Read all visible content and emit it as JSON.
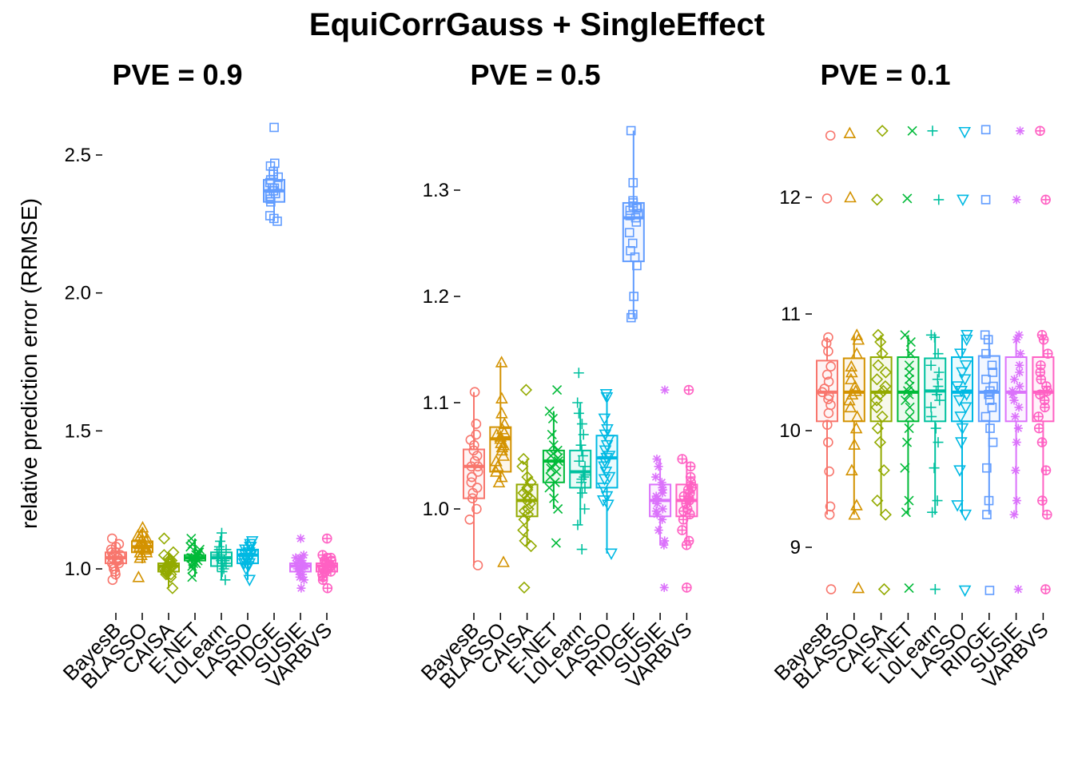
{
  "figure": {
    "title": "EquiCorrGauss + SingleEffect",
    "ylabel": "relative prediction error (RRMSE)"
  },
  "methods": [
    "BayesB",
    "BLASSO",
    "CAISA",
    "E-NET",
    "L0Learn",
    "LASSO",
    "RIDGE",
    "SUSIE",
    "VARBVS"
  ],
  "method_colors": [
    "#F8766D",
    "#D39200",
    "#93AA00",
    "#00BA38",
    "#00C19F",
    "#00B9E3",
    "#619CFF",
    "#DB72FB",
    "#FF61C3"
  ],
  "method_shapes": [
    "circle",
    "triangle",
    "diamond",
    "x",
    "plus",
    "triangle-down",
    "square",
    "asterisk",
    "circle-plus"
  ],
  "chart_data": [
    {
      "type": "box",
      "title": "PVE = 0.9",
      "ylim": [
        0.86,
        2.68
      ],
      "yticks": [
        1.0,
        1.5,
        2.0,
        2.5
      ],
      "ytick_labels": [
        "1.0",
        "1.5",
        "2.0",
        "2.5"
      ],
      "grid": false,
      "boxes": [
        {
          "method": "BayesB",
          "q1": 1.02,
          "median": 1.04,
          "q3": 1.06,
          "whisker_low": 0.96,
          "whisker_high": 1.11
        },
        {
          "method": "BLASSO",
          "q1": 1.06,
          "median": 1.08,
          "q3": 1.1,
          "whisker_low": 1.02,
          "whisker_high": 1.15
        },
        {
          "method": "CAISA",
          "q1": 0.99,
          "median": 1.01,
          "q3": 1.02,
          "whisker_low": 0.93,
          "whisker_high": 1.06
        },
        {
          "method": "E-NET",
          "q1": 1.03,
          "median": 1.04,
          "q3": 1.05,
          "whisker_low": 0.97,
          "whisker_high": 1.11
        },
        {
          "method": "L0Learn",
          "q1": 1.01,
          "median": 1.04,
          "q3": 1.06,
          "whisker_low": 0.96,
          "whisker_high": 1.13
        },
        {
          "method": "LASSO",
          "q1": 1.02,
          "median": 1.05,
          "q3": 1.07,
          "whisker_low": 0.96,
          "whisker_high": 1.11
        },
        {
          "method": "RIDGE",
          "q1": 2.33,
          "median": 2.37,
          "q3": 2.41,
          "whisker_low": 2.26,
          "whisker_high": 2.46
        },
        {
          "method": "SUSIE",
          "q1": 0.99,
          "median": 1.01,
          "q3": 1.02,
          "whisker_low": 0.96,
          "whisker_high": 1.05
        },
        {
          "method": "VARBVS",
          "q1": 0.99,
          "median": 1.01,
          "q3": 1.02,
          "whisker_low": 0.96,
          "whisker_high": 1.05
        }
      ],
      "points": [
        [
          1.04,
          1.06,
          0.99,
          1.09,
          0.96,
          1.02,
          1.11,
          1.05,
          1.0,
          1.03,
          1.07,
          1.01,
          1.04,
          1.08,
          1.02,
          1.05,
          1.03,
          1.06,
          0.98,
          1.04
        ],
        [
          1.08,
          1.1,
          1.06,
          1.15,
          0.97,
          1.12,
          1.07,
          1.09,
          1.05,
          1.11,
          1.08,
          1.13,
          1.06,
          1.1,
          1.04,
          1.09,
          1.07,
          1.12,
          1.08,
          1.06
        ],
        [
          1.01,
          0.99,
          0.93,
          1.11,
          1.03,
          1.0,
          1.02,
          0.98,
          1.04,
          1.01,
          0.97,
          1.06,
          1.0,
          1.02,
          0.99,
          1.03,
          1.01,
          1.0,
          0.98,
          1.05
        ],
        [
          1.04,
          1.06,
          1.02,
          1.11,
          0.97,
          1.05,
          1.03,
          1.08,
          1.04,
          1.0,
          1.06,
          1.09,
          1.03,
          1.05,
          1.04,
          1.02,
          1.07,
          1.04,
          1.01,
          1.05
        ],
        [
          1.03,
          1.13,
          0.96,
          1.07,
          1.04,
          1.01,
          1.1,
          1.05,
          0.99,
          1.06,
          1.02,
          1.08,
          1.04,
          1.03,
          1.0,
          1.05,
          1.07,
          1.02,
          1.04,
          1.06
        ],
        [
          1.05,
          1.07,
          0.96,
          1.1,
          1.02,
          1.04,
          1.08,
          1.06,
          1.0,
          1.09,
          1.03,
          1.05,
          1.07,
          1.01,
          1.04,
          1.06,
          1.08,
          1.03,
          1.05,
          1.02
        ],
        [
          2.6,
          2.47,
          2.46,
          2.43,
          2.42,
          2.41,
          2.4,
          2.39,
          2.38,
          2.37,
          2.36,
          2.35,
          2.34,
          2.33,
          2.28,
          2.27,
          2.26,
          2.36,
          2.38,
          2.44
        ],
        [
          1.11,
          0.93,
          1.05,
          1.04,
          1.03,
          1.02,
          1.01,
          1.0,
          0.99,
          0.98,
          1.01,
          1.0,
          0.97,
          1.03,
          1.02,
          0.99,
          1.0,
          1.04,
          0.96,
          1.01
        ],
        [
          1.11,
          0.93,
          1.05,
          1.04,
          1.03,
          1.02,
          1.01,
          1.0,
          0.99,
          0.98,
          1.01,
          1.0,
          0.97,
          1.03,
          1.02,
          0.99,
          1.0,
          1.04,
          0.96,
          1.01
        ]
      ]
    },
    {
      "type": "box",
      "title": "PVE = 0.5",
      "ylim": [
        0.913,
        1.36
      ],
      "yticks": [
        1.0,
        1.1,
        1.2,
        1.3
      ],
      "ytick_labels": [
        "1.0",
        "1.1",
        "1.2",
        "1.3"
      ],
      "grid": false,
      "boxes": [
        {
          "method": "BayesB",
          "q1": 1.01,
          "median": 1.04,
          "q3": 1.056,
          "whisker_low": 0.947,
          "whisker_high": 1.11
        },
        {
          "method": "BLASSO",
          "q1": 1.035,
          "median": 1.066,
          "q3": 1.077,
          "whisker_low": 1.025,
          "whisker_high": 1.138
        },
        {
          "method": "CAISA",
          "q1": 0.993,
          "median": 1.008,
          "q3": 1.023,
          "whisker_low": 0.965,
          "whisker_high": 1.047
        },
        {
          "method": "E-NET",
          "q1": 1.025,
          "median": 1.045,
          "q3": 1.055,
          "whisker_low": 1.0,
          "whisker_high": 1.092
        },
        {
          "method": "L0Learn",
          "q1": 1.02,
          "median": 1.035,
          "q3": 1.055,
          "whisker_low": 0.985,
          "whisker_high": 1.1
        },
        {
          "method": "LASSO",
          "q1": 1.02,
          "median": 1.048,
          "q3": 1.069,
          "whisker_low": 0.958,
          "whisker_high": 1.108
        },
        {
          "method": "RIDGE",
          "q1": 1.233,
          "median": 1.274,
          "q3": 1.288,
          "whisker_low": 1.18,
          "whisker_high": 1.356
        },
        {
          "method": "SUSIE",
          "q1": 0.993,
          "median": 1.008,
          "q3": 1.023,
          "whisker_low": 0.966,
          "whisker_high": 1.047
        },
        {
          "method": "VARBVS",
          "q1": 0.993,
          "median": 1.008,
          "q3": 1.023,
          "whisker_low": 0.966,
          "whisker_high": 1.047
        }
      ],
      "points": [
        [
          1.11,
          0.947,
          1.08,
          1.07,
          1.06,
          1.05,
          1.04,
          1.04,
          1.03,
          1.02,
          1.01,
          1.0,
          0.99,
          1.035,
          1.045,
          1.025,
          1.055,
          1.015,
          1.065,
          1.03
        ],
        [
          1.138,
          0.95,
          1.104,
          1.09,
          1.08,
          1.075,
          1.07,
          1.066,
          1.06,
          1.055,
          1.05,
          1.045,
          1.04,
          1.035,
          1.03,
          1.025,
          1.062,
          1.068,
          1.072,
          1.058
        ],
        [
          1.112,
          0.926,
          1.047,
          1.04,
          1.03,
          1.025,
          1.02,
          1.015,
          1.01,
          1.005,
          1.0,
          0.995,
          0.99,
          0.98,
          0.97,
          0.965,
          1.008,
          1.012,
          1.018,
          0.998
        ],
        [
          1.112,
          0.968,
          1.092,
          1.085,
          1.07,
          1.06,
          1.055,
          1.05,
          1.045,
          1.04,
          1.035,
          1.03,
          1.025,
          1.02,
          1.01,
          1.0,
          1.048,
          1.052,
          1.042,
          1.038
        ],
        [
          1.128,
          0.962,
          1.1,
          1.09,
          1.08,
          1.07,
          1.06,
          1.055,
          1.045,
          1.035,
          1.03,
          1.025,
          1.02,
          1.015,
          1.0,
          0.985,
          1.04,
          1.05,
          1.032,
          1.028
        ],
        [
          1.108,
          0.958,
          1.105,
          1.085,
          1.075,
          1.07,
          1.065,
          1.06,
          1.055,
          1.05,
          1.048,
          1.045,
          1.04,
          1.035,
          1.03,
          1.02,
          1.012,
          1.008,
          1.004,
          1.028
        ],
        [
          1.356,
          1.307,
          1.29,
          1.288,
          1.285,
          1.284,
          1.283,
          1.278,
          1.276,
          1.274,
          1.27,
          1.26,
          1.25,
          1.243,
          1.237,
          1.229,
          1.2,
          1.183,
          1.18,
          1.281
        ],
        [
          1.112,
          0.926,
          1.047,
          1.04,
          1.03,
          1.025,
          1.02,
          1.015,
          1.01,
          1.005,
          1.0,
          0.995,
          0.99,
          0.98,
          0.97,
          0.966,
          1.008,
          1.012,
          1.018,
          0.998
        ],
        [
          1.112,
          0.926,
          1.047,
          1.04,
          1.03,
          1.025,
          1.02,
          1.015,
          1.01,
          1.005,
          1.0,
          0.995,
          0.99,
          0.98,
          0.97,
          0.966,
          1.008,
          1.012,
          1.018,
          0.998
        ]
      ]
    },
    {
      "type": "box",
      "title": "PVE = 0.1",
      "ylim": [
        8.5,
        12.65
      ],
      "yticks": [
        9,
        10,
        11,
        12
      ],
      "ytick_labels": [
        "9",
        "10",
        "11",
        "12"
      ],
      "grid": false,
      "boxes": [
        {
          "method": "BayesB",
          "q1": 10.08,
          "median": 10.33,
          "q3": 10.6,
          "whisker_low": 9.28,
          "whisker_high": 10.8
        },
        {
          "method": "BLASSO",
          "q1": 10.08,
          "median": 10.33,
          "q3": 10.62,
          "whisker_low": 9.28,
          "whisker_high": 10.82
        },
        {
          "method": "CAISA",
          "q1": 10.08,
          "median": 10.33,
          "q3": 10.63,
          "whisker_low": 9.28,
          "whisker_high": 10.82
        },
        {
          "method": "E-NET",
          "q1": 10.08,
          "median": 10.33,
          "q3": 10.63,
          "whisker_low": 9.28,
          "whisker_high": 10.82
        },
        {
          "method": "L0Learn",
          "q1": 10.08,
          "median": 10.34,
          "q3": 10.62,
          "whisker_low": 9.28,
          "whisker_high": 10.82
        },
        {
          "method": "LASSO",
          "q1": 10.08,
          "median": 10.33,
          "q3": 10.63,
          "whisker_low": 9.28,
          "whisker_high": 10.82
        },
        {
          "method": "RIDGE",
          "q1": 10.08,
          "median": 10.33,
          "q3": 10.64,
          "whisker_low": 9.28,
          "whisker_high": 10.82
        },
        {
          "method": "SUSIE",
          "q1": 10.08,
          "median": 10.33,
          "q3": 10.63,
          "whisker_low": 9.28,
          "whisker_high": 10.82
        },
        {
          "method": "VARBVS",
          "q1": 10.08,
          "median": 10.33,
          "q3": 10.63,
          "whisker_low": 9.28,
          "whisker_high": 10.82
        }
      ],
      "points": [
        [
          12.53,
          11.99,
          10.8,
          10.75,
          10.68,
          10.55,
          10.42,
          10.36,
          10.33,
          10.3,
          10.27,
          10.22,
          10.15,
          10.05,
          9.9,
          9.65,
          9.35,
          9.28,
          8.64,
          10.48
        ],
        [
          12.55,
          12.0,
          10.82,
          10.78,
          10.66,
          10.55,
          10.44,
          10.38,
          10.34,
          10.31,
          10.26,
          10.2,
          10.12,
          10.02,
          9.88,
          9.66,
          9.36,
          9.28,
          8.65,
          10.5
        ],
        [
          12.57,
          11.98,
          10.82,
          10.76,
          10.66,
          10.56,
          10.44,
          10.38,
          10.34,
          10.31,
          10.26,
          10.2,
          10.12,
          10.02,
          9.9,
          9.66,
          9.4,
          9.28,
          8.64,
          10.5
        ],
        [
          12.57,
          11.99,
          10.82,
          10.76,
          10.66,
          10.56,
          10.44,
          10.38,
          10.34,
          10.31,
          10.26,
          10.2,
          10.12,
          10.02,
          9.9,
          9.68,
          9.4,
          9.3,
          8.65,
          10.5
        ],
        [
          12.57,
          11.98,
          10.82,
          10.8,
          10.66,
          10.56,
          10.44,
          10.38,
          10.34,
          10.31,
          10.26,
          10.2,
          10.12,
          10.02,
          9.9,
          9.68,
          9.4,
          9.3,
          8.64,
          10.5
        ],
        [
          12.56,
          11.98,
          10.82,
          10.78,
          10.66,
          10.56,
          10.44,
          10.38,
          10.34,
          10.31,
          10.26,
          10.2,
          10.12,
          10.02,
          9.9,
          9.66,
          9.36,
          9.28,
          8.63,
          10.5
        ],
        [
          12.58,
          11.98,
          10.82,
          10.78,
          10.66,
          10.56,
          10.44,
          10.38,
          10.34,
          10.31,
          10.26,
          10.2,
          10.12,
          10.02,
          9.9,
          9.68,
          9.4,
          9.28,
          8.63,
          10.5
        ],
        [
          12.57,
          11.98,
          10.82,
          10.78,
          10.66,
          10.56,
          10.44,
          10.38,
          10.34,
          10.31,
          10.26,
          10.2,
          10.12,
          10.02,
          9.9,
          9.66,
          9.4,
          9.28,
          8.64,
          10.5
        ],
        [
          12.57,
          11.98,
          10.82,
          10.78,
          10.66,
          10.56,
          10.44,
          10.38,
          10.34,
          10.31,
          10.26,
          10.2,
          10.12,
          10.02,
          9.9,
          9.66,
          9.4,
          9.28,
          8.64,
          10.5
        ]
      ]
    }
  ]
}
